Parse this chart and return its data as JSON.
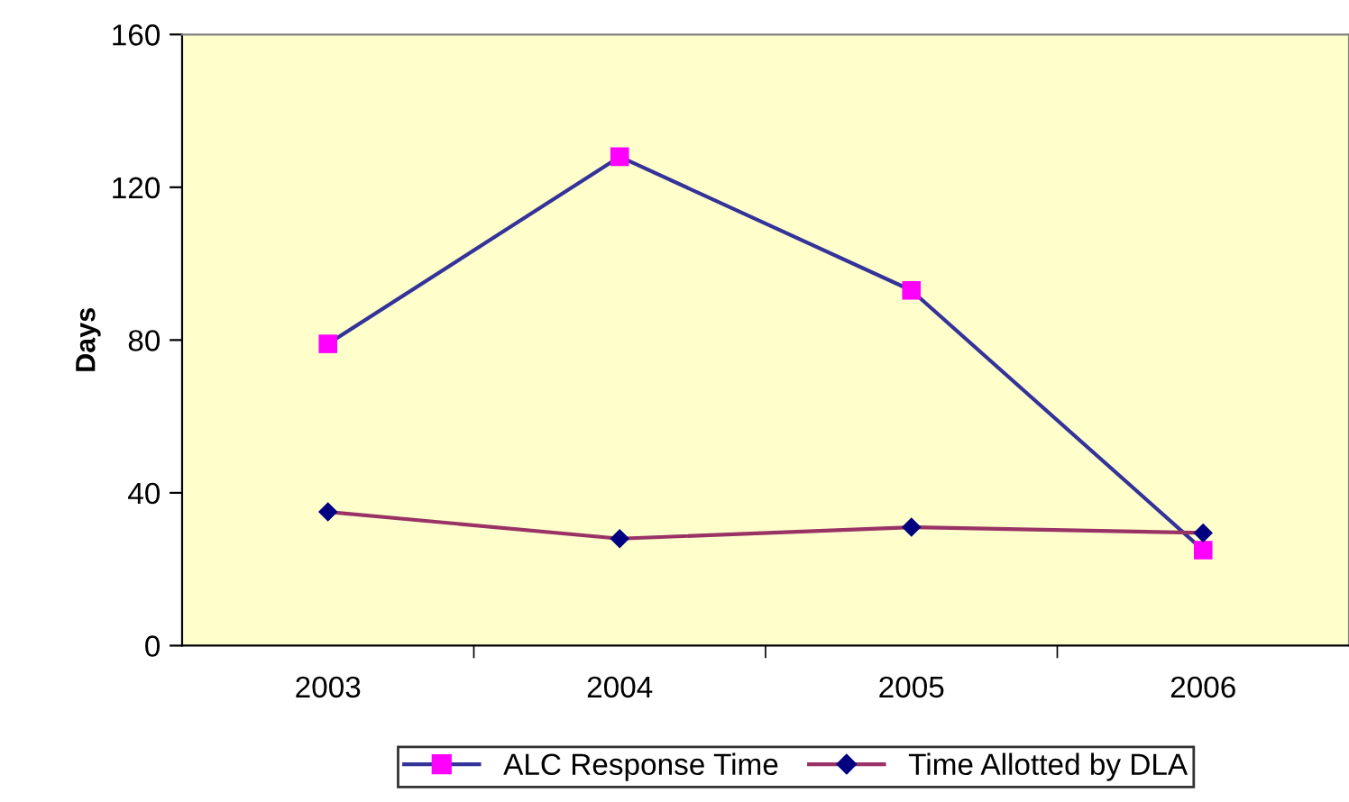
{
  "chart_data": {
    "type": "line",
    "ylabel": "Days",
    "categories": [
      "2003",
      "2004",
      "2005",
      "2006"
    ],
    "series": [
      {
        "name": "ALC Response Time",
        "color": "#333399",
        "colors": [
          "#ff00ff",
          "#ff00ff",
          "#ff00ff",
          "#ff00ff"
        ],
        "marker": "square",
        "values": [
          79,
          128,
          93,
          25
        ]
      },
      {
        "name": "Time Allotted by DLA",
        "color": "#993366",
        "colors": [
          "#000080",
          "#000080",
          "#000080",
          "#000080"
        ],
        "marker": "diamond",
        "values": [
          35,
          28,
          31,
          29.5
        ]
      }
    ],
    "ylim": [
      0,
      160
    ],
    "yticks": [
      0,
      40,
      80,
      120,
      160
    ],
    "grid": false,
    "legend": "bottom",
    "line_style": "solid"
  }
}
